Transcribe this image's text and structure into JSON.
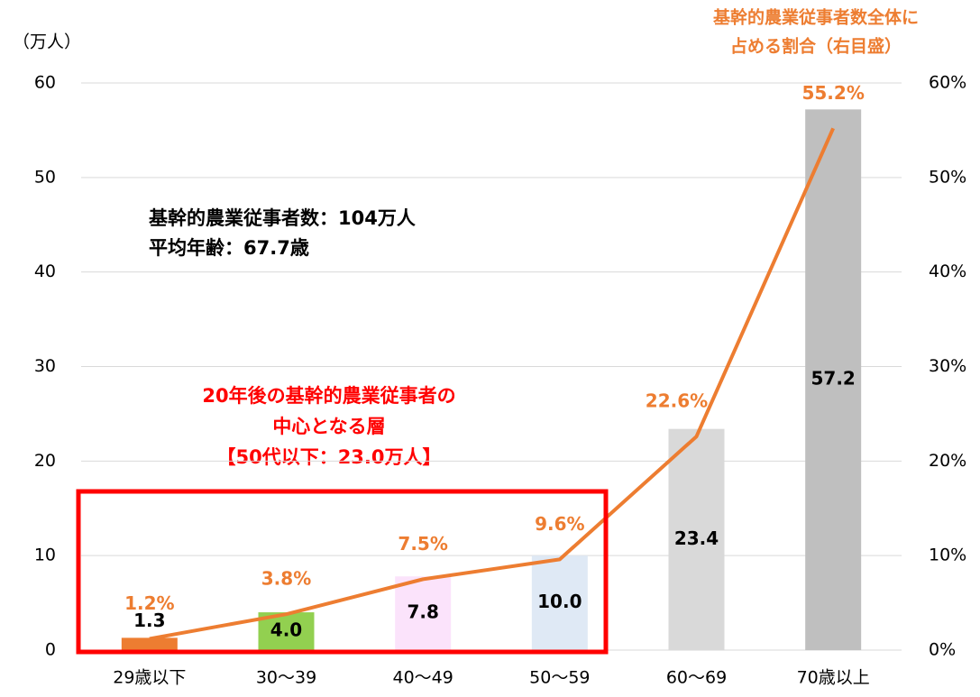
{
  "chart_data": {
    "type": "bar",
    "y_label": "（万人）",
    "y2_label": [
      "基幹的農業従事者数全体に",
      "占める割合（右目盛）"
    ],
    "annotations": [
      "基幹的農業従事者数：104万人",
      "平均年齢：67.7歳"
    ],
    "highlight_annotations": [
      "20年後の基幹的農業従事者の",
      "中心となる層",
      "【50代以下：23.0万人】"
    ],
    "categories": [
      "29歳以下",
      "30～39",
      "40～49",
      "50～59",
      "60～69",
      "70歳以上"
    ],
    "series": [
      {
        "type": "bar",
        "colors": [
          "#ed7d31",
          "#92d050",
          "#fbe3fb",
          "#dfe9f5",
          "#d9d9d9",
          "#bfbfbf"
        ],
        "values": [
          1.3,
          4.0,
          7.8,
          10.0,
          23.4,
          57.2
        ],
        "value_labels": [
          "1.3",
          "4.0",
          "7.8",
          "10.0",
          "23.4",
          "57.2"
        ]
      },
      {
        "type": "line",
        "axis": "y2",
        "color": "#ed7d31",
        "values": [
          1.2,
          3.8,
          7.5,
          9.6,
          22.6,
          55.2
        ],
        "value_labels": [
          "1.2%",
          "3.8%",
          "7.5%",
          "9.6%",
          "22.6%",
          "55.2%"
        ]
      }
    ],
    "ylim": [
      0,
      60
    ],
    "yticks": [
      0,
      10,
      20,
      30,
      40,
      50,
      60
    ],
    "y2lim": [
      0,
      60
    ],
    "y2ticks": [
      {
        "value": 0,
        "label": "0%"
      },
      {
        "value": 10,
        "label": "10%"
      },
      {
        "value": 20,
        "label": "20%"
      },
      {
        "value": 30,
        "label": "30%"
      },
      {
        "value": 40,
        "label": "40%"
      },
      {
        "value": 50,
        "label": "50%"
      },
      {
        "value": 60,
        "label": "60%"
      }
    ],
    "grid": true
  }
}
